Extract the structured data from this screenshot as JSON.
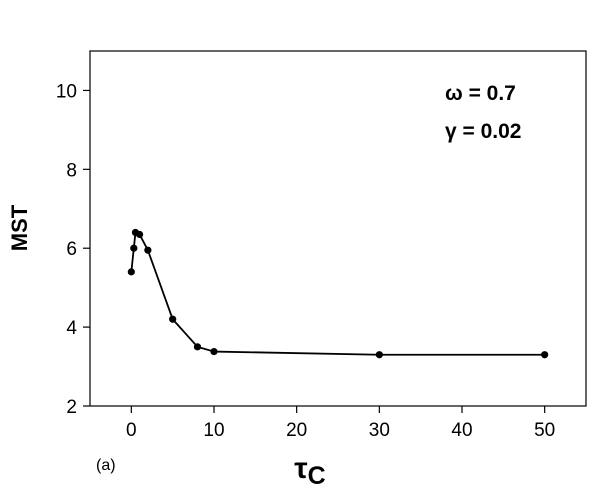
{
  "chart_data": {
    "type": "line",
    "title": "",
    "xlabel_main": "τ",
    "xlabel_sub": "C",
    "ylabel": "MST",
    "xlim": [
      -5,
      55
    ],
    "ylim": [
      2,
      11
    ],
    "xticks": [
      0,
      10,
      20,
      30,
      40,
      50
    ],
    "yticks": [
      2,
      4,
      6,
      8,
      10
    ],
    "grid": false,
    "legend": "none",
    "series": [
      {
        "x": [
          0,
          0.3,
          0.5,
          1,
          2,
          5,
          8,
          10,
          30,
          50
        ],
        "y": [
          5.4,
          6.0,
          6.4,
          6.35,
          5.95,
          4.2,
          3.5,
          3.38,
          3.3,
          3.3
        ]
      }
    ],
    "annotations": [
      "ω = 0.7",
      "γ = 0.02"
    ],
    "panel_label": "(a)",
    "line_color": "#000000",
    "marker_color": "#000000"
  }
}
